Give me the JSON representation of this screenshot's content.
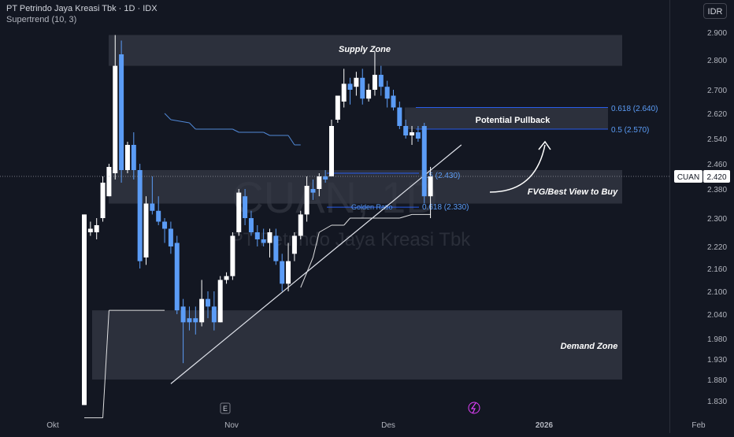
{
  "header": {
    "title": "PT Petrindo Jaya Kreasi Tbk · 1D · IDX",
    "indicator": "Supertrend (10, 3)",
    "currency": "IDR"
  },
  "watermark": {
    "symbol": "CUAN, 1D",
    "name": "PT Petrindo Jaya Kreasi Tbk"
  },
  "price_tag": {
    "ticker": "CUAN",
    "value": "2.420"
  },
  "colors": {
    "background": "#131722",
    "up": "#ffffff",
    "down": "#5b9cf6",
    "zone": "#363a45",
    "text": "#d1d4dc"
  },
  "annotations": {
    "supply": "Supply Zone",
    "demand": "Demand Zone",
    "pullback": "Potential Pullback",
    "fvg": "FVG/Best View to Buy",
    "fib_618_top": "0.618 (2.640)",
    "fib_05_top": "0.5 (2.570)",
    "fib_05_low": "0.5 (2.430)",
    "fib_618_low": "0.618 (2.330)",
    "golden": "Golden Ratio"
  },
  "markers": {
    "earnings": "E"
  },
  "chart_data": {
    "type": "candlestick",
    "title": "PT Petrindo Jaya Kreasi Tbk · 1D · IDX",
    "y_ticks": [
      "2.900",
      "2.800",
      "2.700",
      "2.620",
      "2.540",
      "2.460",
      "2.380",
      "2.300",
      "2.220",
      "2.160",
      "2.100",
      "2.040",
      "1.980",
      "1.930",
      "1.880",
      "1.830"
    ],
    "x_ticks": [
      "Okt",
      "Nov",
      "Des",
      "2026",
      "Feb"
    ],
    "last_price": 2420,
    "zones": [
      {
        "name": "Supply Zone",
        "from": 2780,
        "to": 2890
      },
      {
        "name": "Potential Pullback",
        "from": 2570,
        "to": 2640
      },
      {
        "name": "FVG/Best View to Buy",
        "from": 2340,
        "to": 2440
      },
      {
        "name": "Demand Zone",
        "from": 1880,
        "to": 2050
      }
    ],
    "fib_levels": [
      {
        "label": "0.618 (2.640)",
        "value": 2640
      },
      {
        "label": "0.5 (2.570)",
        "value": 2570
      },
      {
        "label": "0.5 (2.430)",
        "value": 2430
      },
      {
        "label": "0.618 (2.330)",
        "value": 2330
      }
    ],
    "candles": [
      {
        "o": 1820,
        "h": 2310,
        "l": 1820,
        "c": 2310
      },
      {
        "o": 2260,
        "h": 2290,
        "l": 2250,
        "c": 2270
      },
      {
        "o": 2260,
        "h": 2300,
        "l": 2240,
        "c": 2280
      },
      {
        "o": 2300,
        "h": 2420,
        "l": 2290,
        "c": 2400
      },
      {
        "o": 2360,
        "h": 2460,
        "l": 2360,
        "c": 2450
      },
      {
        "o": 2430,
        "h": 2890,
        "l": 2410,
        "c": 2780
      },
      {
        "o": 2820,
        "h": 2870,
        "l": 2400,
        "c": 2440
      },
      {
        "o": 2440,
        "h": 2530,
        "l": 2430,
        "c": 2520
      },
      {
        "o": 2520,
        "h": 2560,
        "l": 2410,
        "c": 2440
      },
      {
        "o": 2440,
        "h": 2460,
        "l": 2160,
        "c": 2180
      },
      {
        "o": 2190,
        "h": 2360,
        "l": 2170,
        "c": 2340
      },
      {
        "o": 2340,
        "h": 2420,
        "l": 2310,
        "c": 2320
      },
      {
        "o": 2320,
        "h": 2360,
        "l": 2280,
        "c": 2290
      },
      {
        "o": 2290,
        "h": 2300,
        "l": 2230,
        "c": 2270
      },
      {
        "o": 2270,
        "h": 2290,
        "l": 2200,
        "c": 2220
      },
      {
        "o": 2230,
        "h": 2250,
        "l": 2040,
        "c": 2050
      },
      {
        "o": 2060,
        "h": 2080,
        "l": 1920,
        "c": 2020
      },
      {
        "o": 2030,
        "h": 2060,
        "l": 2000,
        "c": 2020
      },
      {
        "o": 2030,
        "h": 2060,
        "l": 1990,
        "c": 2020
      },
      {
        "o": 2020,
        "h": 2130,
        "l": 2010,
        "c": 2080
      },
      {
        "o": 2080,
        "h": 2100,
        "l": 2030,
        "c": 2060
      },
      {
        "o": 2060,
        "h": 2100,
        "l": 2000,
        "c": 2020
      },
      {
        "o": 2020,
        "h": 2140,
        "l": 2020,
        "c": 2130
      },
      {
        "o": 2130,
        "h": 2150,
        "l": 2120,
        "c": 2140
      },
      {
        "o": 2140,
        "h": 2260,
        "l": 2130,
        "c": 2250
      },
      {
        "o": 2260,
        "h": 2380,
        "l": 2250,
        "c": 2370
      },
      {
        "o": 2360,
        "h": 2380,
        "l": 2280,
        "c": 2300
      },
      {
        "o": 2300,
        "h": 2320,
        "l": 2250,
        "c": 2260
      },
      {
        "o": 2260,
        "h": 2280,
        "l": 2220,
        "c": 2240
      },
      {
        "o": 2240,
        "h": 2270,
        "l": 2220,
        "c": 2230
      },
      {
        "o": 2230,
        "h": 2270,
        "l": 2190,
        "c": 2260
      },
      {
        "o": 2250,
        "h": 2270,
        "l": 2170,
        "c": 2180
      },
      {
        "o": 2180,
        "h": 2200,
        "l": 2100,
        "c": 2120
      },
      {
        "o": 2120,
        "h": 2230,
        "l": 2100,
        "c": 2180
      },
      {
        "o": 2200,
        "h": 2260,
        "l": 2180,
        "c": 2250
      },
      {
        "o": 2250,
        "h": 2320,
        "l": 2240,
        "c": 2310
      },
      {
        "o": 2310,
        "h": 2420,
        "l": 2290,
        "c": 2390
      },
      {
        "o": 2380,
        "h": 2410,
        "l": 2350,
        "c": 2370
      },
      {
        "o": 2380,
        "h": 2430,
        "l": 2360,
        "c": 2420
      },
      {
        "o": 2420,
        "h": 2440,
        "l": 2400,
        "c": 2410
      },
      {
        "o": 2420,
        "h": 2600,
        "l": 2420,
        "c": 2580
      },
      {
        "o": 2600,
        "h": 2680,
        "l": 2590,
        "c": 2680
      },
      {
        "o": 2660,
        "h": 2770,
        "l": 2640,
        "c": 2720
      },
      {
        "o": 2720,
        "h": 2740,
        "l": 2650,
        "c": 2700
      },
      {
        "o": 2710,
        "h": 2760,
        "l": 2680,
        "c": 2740
      },
      {
        "o": 2740,
        "h": 2770,
        "l": 2650,
        "c": 2670
      },
      {
        "o": 2670,
        "h": 2720,
        "l": 2660,
        "c": 2700
      },
      {
        "o": 2700,
        "h": 2830,
        "l": 2680,
        "c": 2750
      },
      {
        "o": 2750,
        "h": 2780,
        "l": 2680,
        "c": 2710
      },
      {
        "o": 2710,
        "h": 2730,
        "l": 2640,
        "c": 2670
      },
      {
        "o": 2680,
        "h": 2700,
        "l": 2630,
        "c": 2640
      },
      {
        "o": 2640,
        "h": 2660,
        "l": 2570,
        "c": 2580
      },
      {
        "o": 2580,
        "h": 2600,
        "l": 2540,
        "c": 2550
      },
      {
        "o": 2550,
        "h": 2580,
        "l": 2520,
        "c": 2560
      },
      {
        "o": 2560,
        "h": 2580,
        "l": 2530,
        "c": 2540
      },
      {
        "o": 2580,
        "h": 2590,
        "l": 2340,
        "c": 2360
      },
      {
        "o": 2360,
        "h": 2450,
        "l": 2300,
        "c": 2420
      }
    ],
    "supertrend": [
      {
        "i": 0,
        "v": 1790
      },
      {
        "i": 3,
        "v": 1790
      },
      {
        "i": 4,
        "v": 2050
      },
      {
        "i": 13,
        "v": 2050
      },
      {
        "i": 13,
        "v": 2620
      },
      {
        "i": 14,
        "v": 2600
      },
      {
        "i": 17,
        "v": 2590
      },
      {
        "i": 18,
        "v": 2570
      },
      {
        "i": 24,
        "v": 2570
      },
      {
        "i": 25,
        "v": 2560
      },
      {
        "i": 29,
        "v": 2560
      },
      {
        "i": 30,
        "v": 2550
      },
      {
        "i": 33,
        "v": 2550
      },
      {
        "i": 34,
        "v": 2520
      },
      {
        "i": 35,
        "v": 2520
      },
      {
        "i": 35,
        "v": 2110
      },
      {
        "i": 37,
        "v": 2190
      },
      {
        "i": 38,
        "v": 2260
      },
      {
        "i": 40,
        "v": 2280
      },
      {
        "i": 42,
        "v": 2280
      },
      {
        "i": 43,
        "v": 2300
      },
      {
        "i": 51,
        "v": 2300
      },
      {
        "i": 53,
        "v": 2310
      },
      {
        "i": 56,
        "v": 2310
      }
    ],
    "trendline": {
      "from": {
        "i": 14,
        "v": 1870
      },
      "to": {
        "i": 61,
        "v": 2520
      }
    }
  }
}
